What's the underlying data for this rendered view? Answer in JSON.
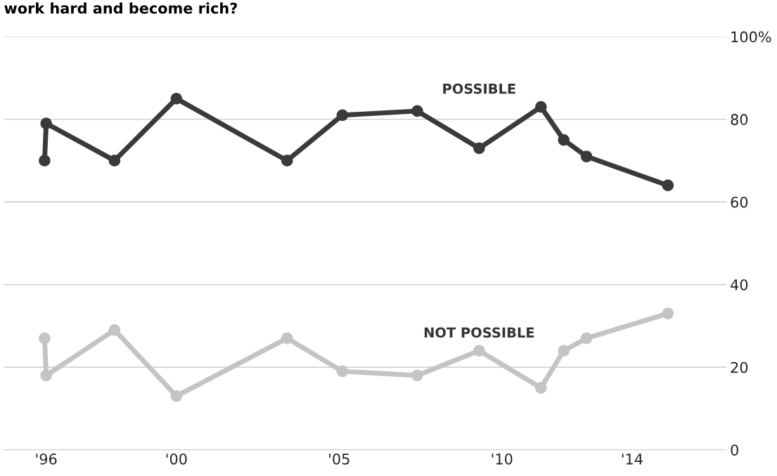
{
  "chart_data": {
    "type": "line",
    "title": "work hard and become rich?",
    "x": [
      1995.95,
      1996.0,
      1998.1,
      2000.0,
      2003.4,
      2005.1,
      2007.4,
      2009.3,
      2011.2,
      2011.9,
      2012.6,
      2015.1
    ],
    "series": [
      {
        "name": "POSSIBLE",
        "color": "#3a3a3a",
        "values": [
          70,
          79,
          70,
          85,
          70,
          81,
          82,
          73,
          83,
          75,
          71,
          64
        ]
      },
      {
        "name": "NOT POSSIBLE",
        "color": "#c4c4c4",
        "values": [
          27,
          18,
          29,
          13,
          27,
          19,
          18,
          24,
          15,
          24,
          27,
          33
        ]
      }
    ],
    "xlim": [
      1994.7,
      2016.9
    ],
    "xticks": [
      {
        "value": 1996,
        "label": "'96"
      },
      {
        "value": 2000,
        "label": "'00"
      },
      {
        "value": 2005,
        "label": "'05"
      },
      {
        "value": 2010,
        "label": "'10"
      },
      {
        "value": 2014,
        "label": "'14"
      }
    ],
    "ylim": [
      0,
      100
    ],
    "yticks": [
      0,
      20,
      40,
      60,
      80,
      {
        "value": 100,
        "label": "100%"
      }
    ],
    "grid": "y",
    "marker": "circle",
    "line_style": "solid",
    "legend": false
  }
}
